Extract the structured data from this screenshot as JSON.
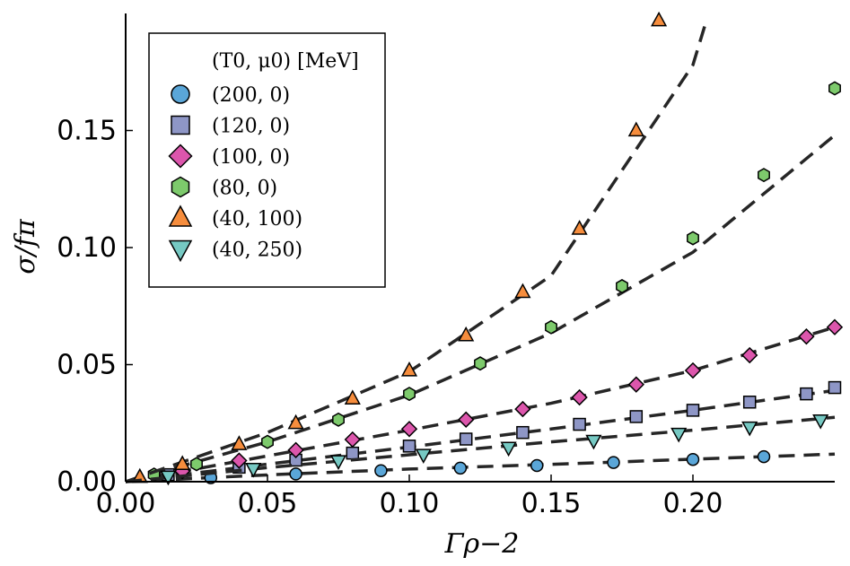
{
  "chart_data": {
    "type": "scatter",
    "title": "",
    "xlabel": "Γρ−2",
    "ylabel": "σ/fπ",
    "xlim": [
      0,
      0.25
    ],
    "ylim": [
      0,
      0.2
    ],
    "x_ticks": [
      "0.00",
      "0.05",
      "0.10",
      "0.15",
      "0.20"
    ],
    "y_ticks": [
      "0.00",
      "0.05",
      "0.10",
      "0.15"
    ],
    "grid": false,
    "legend_position": "top-left",
    "legend_title": "(T0, μ0) [MeV]",
    "series": [
      {
        "name": "(200, 0)",
        "marker": "circle",
        "color": "#5aa6d8",
        "x": [
          0.03,
          0.06,
          0.09,
          0.118,
          0.145,
          0.172,
          0.2,
          0.225
        ],
        "y": [
          0.0017,
          0.0033,
          0.0047,
          0.0058,
          0.0069,
          0.0082,
          0.0095,
          0.0107
        ],
        "fit_x": [
          0,
          0.05,
          0.1,
          0.15,
          0.2,
          0.25
        ],
        "fit_y": [
          0,
          0.0029,
          0.0054,
          0.0074,
          0.0096,
          0.0118
        ]
      },
      {
        "name": "(120, 0)",
        "marker": "square",
        "color": "#8e96c6",
        "x": [
          0.015,
          0.04,
          0.06,
          0.08,
          0.1,
          0.12,
          0.14,
          0.16,
          0.18,
          0.2,
          0.22,
          0.24,
          0.25
        ],
        "y": [
          0.003,
          0.0062,
          0.0092,
          0.0122,
          0.0152,
          0.0182,
          0.021,
          0.0245,
          0.0278,
          0.0305,
          0.034,
          0.0375,
          0.0402
        ],
        "fit_x": [
          0,
          0.05,
          0.1,
          0.15,
          0.2,
          0.25
        ],
        "fit_y": [
          0,
          0.0075,
          0.0148,
          0.0225,
          0.0305,
          0.039
        ]
      },
      {
        "name": "(100, 0)",
        "marker": "diamond",
        "color": "#dc56ac",
        "x": [
          0.02,
          0.04,
          0.06,
          0.08,
          0.1,
          0.12,
          0.14,
          0.16,
          0.18,
          0.2,
          0.22,
          0.24,
          0.25
        ],
        "y": [
          0.0045,
          0.009,
          0.0135,
          0.018,
          0.0225,
          0.0265,
          0.031,
          0.036,
          0.0415,
          0.0475,
          0.054,
          0.062,
          0.066
        ],
        "fit_x": [
          0,
          0.05,
          0.1,
          0.15,
          0.2,
          0.25
        ],
        "fit_y": [
          0,
          0.011,
          0.022,
          0.0335,
          0.0475,
          0.066
        ]
      },
      {
        "name": "(80, 0)",
        "marker": "hexagon",
        "color": "#7dca6c",
        "x": [
          0.01,
          0.025,
          0.05,
          0.075,
          0.1,
          0.125,
          0.15,
          0.175,
          0.2,
          0.225,
          0.25
        ],
        "y": [
          0.003,
          0.0075,
          0.017,
          0.0265,
          0.0375,
          0.0505,
          0.066,
          0.0835,
          0.104,
          0.131,
          0.168
        ],
        "fit_x": [
          0,
          0.05,
          0.1,
          0.15,
          0.2,
          0.25
        ],
        "fit_y": [
          0,
          0.017,
          0.037,
          0.0635,
          0.098,
          0.148
        ]
      },
      {
        "name": "(40, 100)",
        "marker": "triangle-up",
        "color": "#f68d3d",
        "x": [
          0.005,
          0.02,
          0.04,
          0.06,
          0.08,
          0.1,
          0.12,
          0.14,
          0.16,
          0.18,
          0.188
        ],
        "y": [
          0.002,
          0.0075,
          0.016,
          0.025,
          0.0355,
          0.0475,
          0.0625,
          0.081,
          0.108,
          0.15,
          0.197
        ],
        "fit_x": [
          0,
          0.05,
          0.1,
          0.15,
          0.2,
          0.205
        ],
        "fit_y": [
          0,
          0.021,
          0.047,
          0.088,
          0.178,
          0.198
        ]
      },
      {
        "name": "(40, 250)",
        "marker": "triangle-down",
        "color": "#76c9c3",
        "x": [
          0.015,
          0.045,
          0.075,
          0.105,
          0.135,
          0.165,
          0.195,
          0.22,
          0.245
        ],
        "y": [
          0.0022,
          0.0055,
          0.0088,
          0.0115,
          0.0145,
          0.0175,
          0.0205,
          0.0232,
          0.0262
        ],
        "fit_x": [
          0,
          0.05,
          0.1,
          0.15,
          0.2,
          0.25
        ],
        "fit_y": [
          0,
          0.006,
          0.0115,
          0.017,
          0.022,
          0.0275
        ]
      }
    ]
  }
}
